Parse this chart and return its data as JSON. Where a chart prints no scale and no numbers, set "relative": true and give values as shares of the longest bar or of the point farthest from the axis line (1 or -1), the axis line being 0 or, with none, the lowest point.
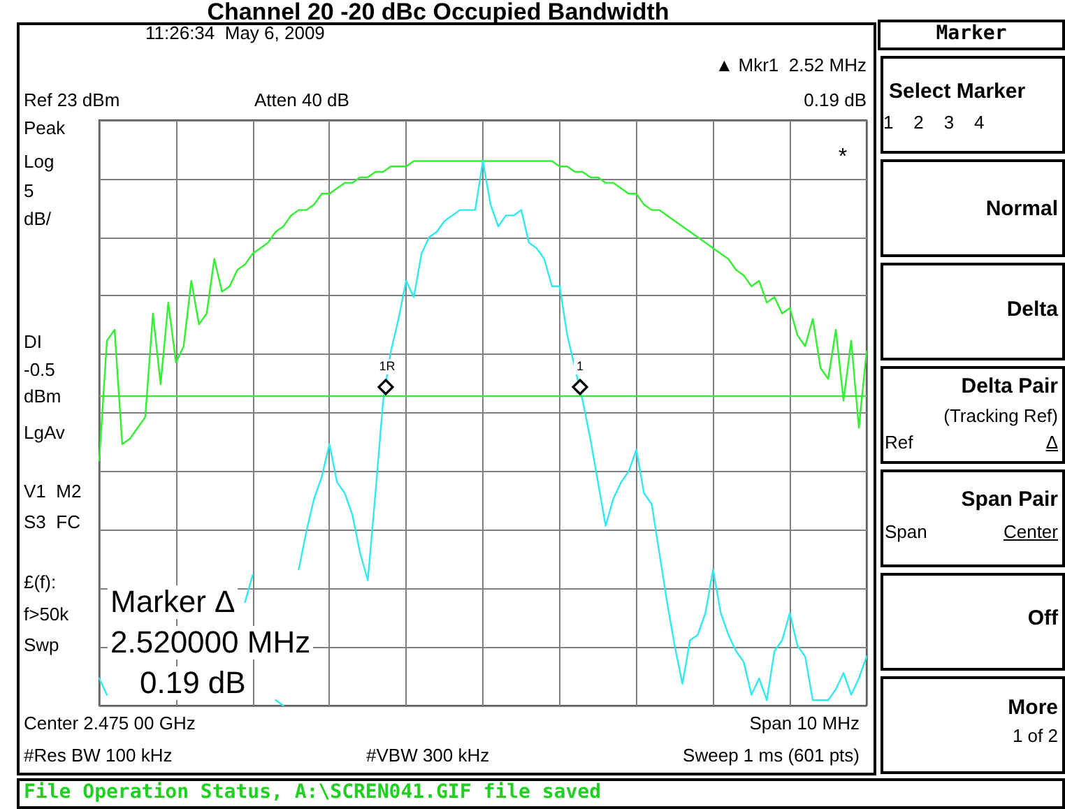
{
  "chart_data": {
    "type": "line",
    "title": "Channel 20 -20 dBc Occupied Bandwidth",
    "relative": true,
    "grid": true,
    "line_style": "solid",
    "categories": [
      null,
      null,
      null,
      null,
      null,
      null,
      null,
      null,
      null,
      null,
      null,
      null,
      null,
      null,
      null,
      null,
      null,
      null,
      null,
      null,
      null,
      null,
      null,
      null,
      null,
      null,
      null,
      null,
      null,
      null,
      null,
      null,
      null,
      null,
      null,
      null,
      null,
      null,
      null,
      null,
      null,
      null,
      null,
      null,
      null,
      null,
      null,
      null,
      null,
      null,
      null,
      null,
      null,
      null,
      null,
      null,
      null,
      null,
      null,
      null,
      null,
      null,
      null,
      null,
      null,
      null,
      null,
      null,
      null,
      null,
      null,
      null,
      null,
      null,
      null,
      null,
      null,
      null,
      null,
      null,
      null,
      null,
      null,
      null,
      null,
      null,
      null,
      null,
      null,
      null,
      null,
      null,
      null,
      null,
      null,
      null,
      null,
      null,
      null,
      null,
      null
    ],
    "series": [
      {
        "color": "#30f030",
        "values": [
          0.45,
          0.67,
          0.69,
          0.48,
          0.49,
          0.51,
          0.53,
          0.72,
          0.59,
          0.74,
          0.63,
          0.66,
          0.78,
          0.7,
          0.72,
          0.82,
          0.76,
          0.77,
          0.8,
          0.81,
          0.83,
          0.84,
          0.85,
          0.87,
          0.88,
          0.9,
          0.91,
          0.91,
          0.92,
          0.94,
          0.94,
          0.95,
          0.96,
          0.96,
          0.97,
          0.97,
          0.98,
          0.98,
          0.99,
          0.99,
          0.99,
          1,
          1,
          1,
          1,
          1,
          1,
          1,
          1,
          1,
          1,
          1,
          1,
          1,
          1,
          1,
          1,
          1,
          1,
          1,
          0.99,
          0.99,
          0.98,
          0.98,
          0.97,
          0.97,
          0.96,
          0.96,
          0.95,
          0.94,
          0.94,
          0.92,
          0.91,
          0.91,
          0.9,
          0.89,
          0.88,
          0.87,
          0.86,
          0.85,
          0.84,
          0.83,
          0.82,
          0.8,
          0.79,
          0.77,
          0.78,
          0.74,
          0.75,
          0.72,
          0.73,
          0.68,
          0.66,
          0.71,
          0.62,
          0.6,
          0.69,
          0.56,
          0.67,
          0.51,
          0.65
        ]
      },
      {
        "color": "#30e8f0",
        "values": [
          0.05,
          0.02,
          null,
          null,
          null,
          null,
          null,
          null,
          null,
          null,
          null,
          null,
          null,
          null,
          null,
          null,
          null,
          null,
          null,
          0.19,
          0.24,
          null,
          null,
          0.01,
          0,
          null,
          0.25,
          0.32,
          0.38,
          0.42,
          0.48,
          0.41,
          0.39,
          0.35,
          0.28,
          0.23,
          0.39,
          0.56,
          0.65,
          0.71,
          0.78,
          0.75,
          0.83,
          0.86,
          0.87,
          0.89,
          0.9,
          0.91,
          0.91,
          0.91,
          1,
          0.92,
          0.88,
          0.9,
          0.9,
          0.91,
          0.85,
          0.84,
          0.82,
          0.77,
          0.77,
          0.68,
          0.62,
          0.56,
          0.49,
          0.41,
          0.33,
          0.38,
          0.41,
          0.43,
          0.47,
          0.39,
          0.37,
          0.28,
          0.19,
          0.11,
          0.04,
          0.12,
          0.13,
          0.17,
          0.25,
          0.17,
          0.13,
          0.1,
          0.08,
          0.02,
          0.05,
          0.01,
          0.1,
          0.12,
          0.17,
          0.11,
          0.09,
          0.01,
          0.01,
          0.01,
          0.03,
          0.06,
          0.02,
          0.05,
          0.09
        ]
      }
    ],
    "ref_lines": [
      {
        "axis": "y",
        "value": 0.57,
        "color": "#30f030"
      }
    ],
    "annotations": [
      "11:26:34  May 6, 2009",
      "▲ Mkr1  2.52 MHz",
      "0.19 dB",
      "Ref 23 dBm",
      "Atten 40 dB",
      "Peak",
      "Log",
      "5",
      "dB/",
      "DI",
      "-0.5",
      "dBm",
      "LgAv",
      "V1  M2",
      "S3  FC",
      "£(f):",
      "f>50k",
      "Swp",
      "Marker Δ",
      "2.520000 MHz",
      "0.19 dB",
      "*",
      "1R",
      "1",
      "Center 2.475 00 GHz",
      "Span 10 MHz",
      "#Res BW 100 kHz",
      "#VBW 300 kHz",
      "Sweep 1 ms (601 pts)",
      "File Operation Status, A:\\SCREN041.GIF file saved",
      "Marker",
      "Select Marker",
      "1    2    3    4",
      "Normal",
      "Delta",
      "Delta Pair",
      "(Tracking Ref)",
      "Ref",
      "Δ",
      "Span Pair",
      "Span",
      "Center",
      "Off",
      "More",
      "1 of 2"
    ]
  }
}
